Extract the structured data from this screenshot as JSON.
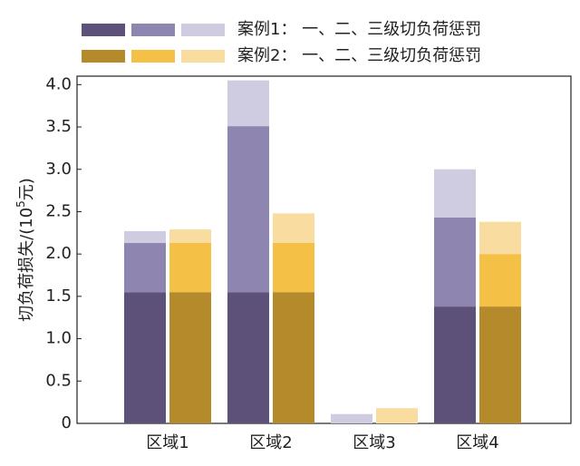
{
  "chart_data": {
    "type": "grouped-stacked-bar",
    "ylabel_parts": [
      "切负荷损失/(10",
      "5",
      "元)"
    ],
    "categories": [
      "区域1",
      "区域2",
      "区域3",
      "区域4"
    ],
    "ylim": [
      0,
      4.1
    ],
    "yticks": [
      0,
      0.5,
      {
        "value": 1.0,
        "label": "1.0"
      },
      1.5,
      {
        "value": 2.0,
        "label": "2.0"
      },
      2.5,
      {
        "value": 3.0,
        "label": "3.0"
      },
      3.5,
      {
        "value": 4.0,
        "label": "4.0"
      }
    ],
    "groups": [
      {
        "name": "案例1： 一、二、三级切负荷惩罚",
        "colors": [
          "#5e5179",
          "#8e86b0",
          "#cfcbe0"
        ],
        "segments": [
          [
            1.55,
            1.55,
            0,
            1.38
          ],
          [
            0.58,
            1.96,
            0,
            1.05
          ],
          [
            0.14,
            0.54,
            0.11,
            0.57
          ]
        ]
      },
      {
        "name": "案例2： 一、二、三级切负荷惩罚",
        "colors": [
          "#b58a2a",
          "#f4c046",
          "#f8dca0"
        ],
        "segments": [
          [
            1.55,
            1.55,
            0,
            1.38
          ],
          [
            0.58,
            0.58,
            0,
            0.62
          ],
          [
            0.16,
            0.35,
            0.18,
            0.38
          ]
        ]
      }
    ]
  }
}
